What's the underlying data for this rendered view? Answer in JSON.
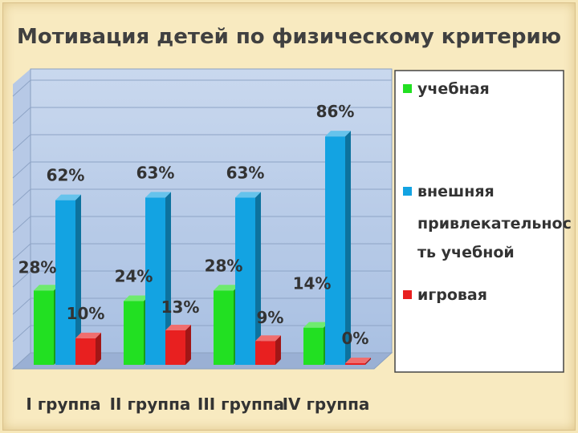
{
  "chart_data": {
    "type": "bar",
    "title": "Мотивация детей по физическому критерию",
    "categories": [
      "I группа",
      "II группа",
      "III группа",
      "IV группа"
    ],
    "series": [
      {
        "name": "учебная",
        "values": [
          28,
          24,
          28,
          14
        ],
        "labels": [
          "28%",
          "24%",
          "28%",
          "14%"
        ],
        "color": "#22e022"
      },
      {
        "name": "внешняя привлекательность учебной",
        "legend_lines": [
          "внешняя",
          "привлекательнос",
          "ть учебной"
        ],
        "values": [
          62,
          63,
          63,
          86
        ],
        "labels": [
          "62%",
          "63%",
          "63%",
          "86%"
        ],
        "color": "#13a3e2"
      },
      {
        "name": "игровая",
        "values": [
          10,
          13,
          9,
          0
        ],
        "labels": [
          "10%",
          "13%",
          "9%",
          "0%"
        ],
        "color": "#e82020"
      }
    ],
    "ylim": [
      0,
      100
    ],
    "grid": true,
    "legend_position": "right"
  }
}
